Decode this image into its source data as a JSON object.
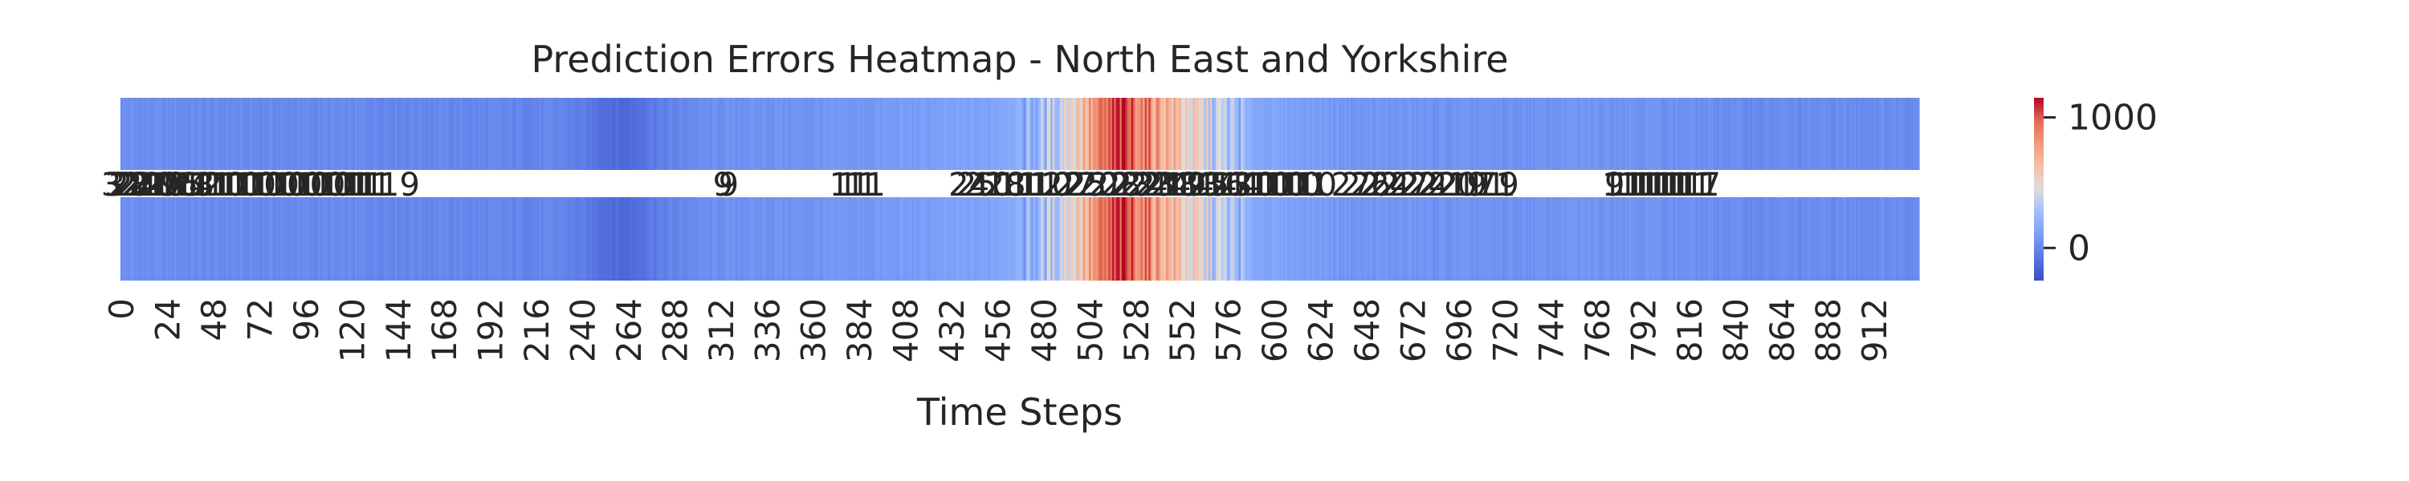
{
  "chart_data": {
    "type": "heatmap",
    "title": "Prediction Errors Heatmap - North East and Yorkshire",
    "xlabel": "Time Steps",
    "ylabel": "",
    "x_ticks": [
      "0",
      "24",
      "48",
      "72",
      "96",
      "120",
      "144",
      "168",
      "192",
      "216",
      "240",
      "264",
      "288",
      "312",
      "336",
      "360",
      "384",
      "408",
      "432",
      "456",
      "480",
      "504",
      "528",
      "552",
      "576",
      "600",
      "624",
      "648",
      "672",
      "696",
      "720",
      "744",
      "768",
      "792",
      "816",
      "840",
      "864",
      "888",
      "912"
    ],
    "x_range": [
      0,
      935
    ],
    "n_cells": 936,
    "colormap": "coolwarm",
    "colorbar": {
      "min": -250,
      "max": 1150,
      "ticks": [
        0,
        1000
      ],
      "tick_labels": [
        "0",
        "1000"
      ]
    },
    "grid": false,
    "legend": "none",
    "error_profile": [
      {
        "x": 0,
        "value": 30
      },
      {
        "x": 24,
        "value": 20
      },
      {
        "x": 48,
        "value": 10
      },
      {
        "x": 150,
        "value": 0
      },
      {
        "x": 230,
        "value": -15
      },
      {
        "x": 262,
        "value": -140
      },
      {
        "x": 275,
        "value": -60
      },
      {
        "x": 300,
        "value": 20
      },
      {
        "x": 320,
        "value": 40
      },
      {
        "x": 380,
        "value": 60
      },
      {
        "x": 450,
        "value": 120
      },
      {
        "x": 480,
        "value": 250
      },
      {
        "x": 500,
        "value": 650
      },
      {
        "x": 520,
        "value": 1050
      },
      {
        "x": 535,
        "value": 850
      },
      {
        "x": 560,
        "value": 450
      },
      {
        "x": 590,
        "value": 150
      },
      {
        "x": 640,
        "value": 60
      },
      {
        "x": 720,
        "value": 40
      },
      {
        "x": 780,
        "value": 60
      },
      {
        "x": 850,
        "value": 10
      },
      {
        "x": 935,
        "value": 20
      }
    ],
    "cell_annotations": [
      {
        "x": 0,
        "text": "32"
      },
      {
        "x": 2,
        "text": "31"
      },
      {
        "x": 4,
        "text": "28"
      },
      {
        "x": 6,
        "text": "27"
      },
      {
        "x": 8,
        "text": "24"
      },
      {
        "x": 11,
        "text": "22"
      },
      {
        "x": 14,
        "text": "21"
      },
      {
        "x": 17,
        "text": "20"
      },
      {
        "x": 20,
        "text": "19"
      },
      {
        "x": 23,
        "text": "18"
      },
      {
        "x": 26,
        "text": "17"
      },
      {
        "x": 29,
        "text": "16"
      },
      {
        "x": 32,
        "text": "15"
      },
      {
        "x": 35,
        "text": "14"
      },
      {
        "x": 38,
        "text": "13"
      },
      {
        "x": 42,
        "text": "12"
      },
      {
        "x": 46,
        "text": "11"
      },
      {
        "x": 50,
        "text": "11"
      },
      {
        "x": 54,
        "text": "10"
      },
      {
        "x": 58,
        "text": "11"
      },
      {
        "x": 62,
        "text": "10"
      },
      {
        "x": 66,
        "text": "11"
      },
      {
        "x": 70,
        "text": "10"
      },
      {
        "x": 74,
        "text": "10"
      },
      {
        "x": 78,
        "text": "11"
      },
      {
        "x": 82,
        "text": "10"
      },
      {
        "x": 86,
        "text": "10"
      },
      {
        "x": 90,
        "text": "11"
      },
      {
        "x": 94,
        "text": "10"
      },
      {
        "x": 98,
        "text": "10"
      },
      {
        "x": 102,
        "text": "11"
      },
      {
        "x": 106,
        "text": "10"
      },
      {
        "x": 110,
        "text": "10"
      },
      {
        "x": 114,
        "text": "11"
      },
      {
        "x": 118,
        "text": "11"
      },
      {
        "x": 122,
        "text": "11"
      },
      {
        "x": 126,
        "text": "11"
      },
      {
        "x": 130,
        "text": "11"
      },
      {
        "x": 134,
        "text": "11"
      },
      {
        "x": 150,
        "text": "9"
      },
      {
        "x": 313,
        "text": "9"
      },
      {
        "x": 316,
        "text": "9"
      },
      {
        "x": 379,
        "text": "11"
      },
      {
        "x": 383,
        "text": "11"
      },
      {
        "x": 387,
        "text": "11"
      },
      {
        "x": 441,
        "text": "24"
      },
      {
        "x": 445,
        "text": "25"
      },
      {
        "x": 449,
        "text": "22"
      },
      {
        "x": 453,
        "text": "10"
      },
      {
        "x": 460,
        "text": "18"
      },
      {
        "x": 466,
        "text": "11"
      },
      {
        "x": 472,
        "text": "11"
      },
      {
        "x": 478,
        "text": "11"
      },
      {
        "x": 484,
        "text": "10"
      },
      {
        "x": 490,
        "text": "22"
      },
      {
        "x": 496,
        "text": "27"
      },
      {
        "x": 502,
        "text": "25"
      },
      {
        "x": 508,
        "text": "20"
      },
      {
        "x": 514,
        "text": "22"
      },
      {
        "x": 520,
        "text": "28"
      },
      {
        "x": 526,
        "text": "23"
      },
      {
        "x": 530,
        "text": "22"
      },
      {
        "x": 534,
        "text": "24"
      },
      {
        "x": 538,
        "text": "23"
      },
      {
        "x": 542,
        "text": "21"
      },
      {
        "x": 546,
        "text": "24"
      },
      {
        "x": 550,
        "text": "18"
      },
      {
        "x": 554,
        "text": "19"
      },
      {
        "x": 558,
        "text": "14"
      },
      {
        "x": 562,
        "text": "13"
      },
      {
        "x": 566,
        "text": "15"
      },
      {
        "x": 570,
        "text": "14"
      },
      {
        "x": 574,
        "text": "16"
      },
      {
        "x": 578,
        "text": "13"
      },
      {
        "x": 582,
        "text": "14"
      },
      {
        "x": 586,
        "text": "11"
      },
      {
        "x": 590,
        "text": "10"
      },
      {
        "x": 594,
        "text": "11"
      },
      {
        "x": 598,
        "text": "10"
      },
      {
        "x": 602,
        "text": "11"
      },
      {
        "x": 606,
        "text": "10"
      },
      {
        "x": 610,
        "text": "11"
      },
      {
        "x": 614,
        "text": "10"
      },
      {
        "x": 618,
        "text": "11"
      },
      {
        "x": 622,
        "text": "10"
      },
      {
        "x": 640,
        "text": "27"
      },
      {
        "x": 645,
        "text": "22"
      },
      {
        "x": 650,
        "text": "26"
      },
      {
        "x": 655,
        "text": "22"
      },
      {
        "x": 660,
        "text": "24"
      },
      {
        "x": 665,
        "text": "22"
      },
      {
        "x": 670,
        "text": "27"
      },
      {
        "x": 675,
        "text": "22"
      },
      {
        "x": 680,
        "text": "24"
      },
      {
        "x": 685,
        "text": "22"
      },
      {
        "x": 690,
        "text": "21"
      },
      {
        "x": 695,
        "text": "20"
      },
      {
        "x": 700,
        "text": "19"
      },
      {
        "x": 705,
        "text": "17"
      },
      {
        "x": 710,
        "text": "11"
      },
      {
        "x": 715,
        "text": "11"
      },
      {
        "x": 722,
        "text": "9"
      },
      {
        "x": 777,
        "text": "9"
      },
      {
        "x": 781,
        "text": "11"
      },
      {
        "x": 785,
        "text": "11"
      },
      {
        "x": 789,
        "text": "11"
      },
      {
        "x": 793,
        "text": "11"
      },
      {
        "x": 797,
        "text": "11"
      },
      {
        "x": 801,
        "text": "11"
      },
      {
        "x": 805,
        "text": "11"
      },
      {
        "x": 809,
        "text": "11"
      },
      {
        "x": 813,
        "text": "11"
      },
      {
        "x": 817,
        "text": "11"
      },
      {
        "x": 821,
        "text": "11"
      },
      {
        "x": 827,
        "text": "7"
      }
    ]
  }
}
